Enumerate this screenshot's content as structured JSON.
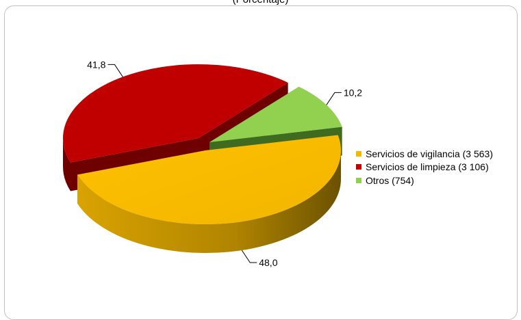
{
  "chart_data": {
    "type": "pie",
    "title": "(Porcentaje)",
    "series": [
      {
        "name": "Servicios de vigilancia (3 563)",
        "value": 48.0,
        "label": "48,0",
        "color": "#F5B800",
        "side": "#8A6A00"
      },
      {
        "name": "Servicios de limpieza (3 106)",
        "value": 41.8,
        "label": "41,8",
        "color": "#C00000",
        "side": "#6E0000"
      },
      {
        "name": "Otros (754)",
        "value": 10.2,
        "label": "10,2",
        "color": "#92D050",
        "side": "#3E6B1F"
      }
    ],
    "legend_position": "right"
  }
}
